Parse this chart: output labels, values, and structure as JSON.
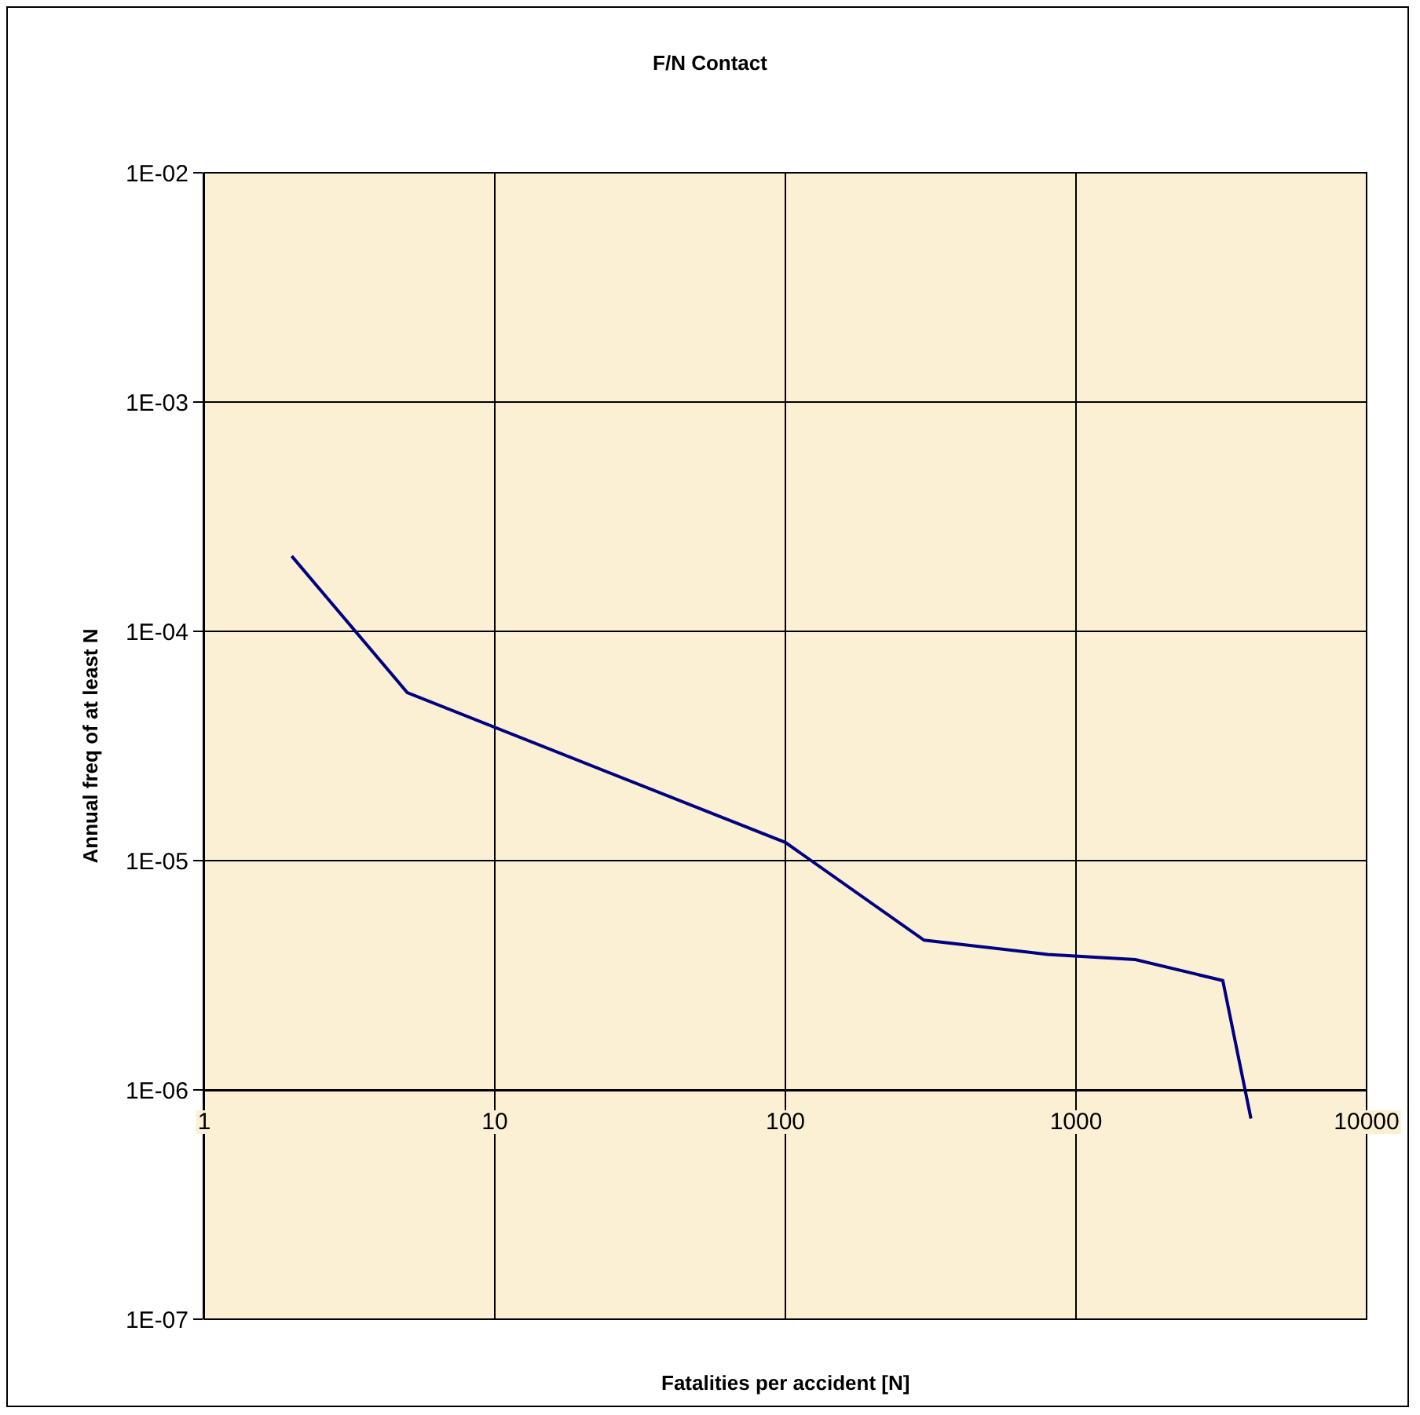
{
  "chart_data": {
    "type": "line",
    "title": "F/N Contact",
    "xlabel": "Fatalities per accident [N]",
    "ylabel": "Annual freq of at least N",
    "x": [
      2,
      5,
      100,
      300,
      800,
      1600,
      3200,
      4000
    ],
    "series": [
      {
        "color": "#000080",
        "values": [
          0.000213,
          5.4e-05,
          1.2e-05,
          4.5e-06,
          3.9e-06,
          3.7e-06,
          3e-06,
          7.5e-07
        ]
      }
    ],
    "log": "xy",
    "xlim": [
      1,
      10000
    ],
    "ylim": [
      1e-07,
      0.01
    ],
    "xticks": [
      1,
      10,
      100,
      1000,
      10000
    ],
    "yticks": [
      {
        "value": 1e-07,
        "label": "1E-07"
      },
      {
        "value": 1e-06,
        "label": "1E-06"
      },
      {
        "value": 1e-05,
        "label": "1E-05"
      },
      {
        "value": 0.0001,
        "label": "1E-04"
      },
      {
        "value": 0.001,
        "label": "1E-03"
      },
      {
        "value": 0.01,
        "label": "1E-02"
      }
    ],
    "grid": true,
    "marker": "none",
    "line_style": "solid"
  }
}
